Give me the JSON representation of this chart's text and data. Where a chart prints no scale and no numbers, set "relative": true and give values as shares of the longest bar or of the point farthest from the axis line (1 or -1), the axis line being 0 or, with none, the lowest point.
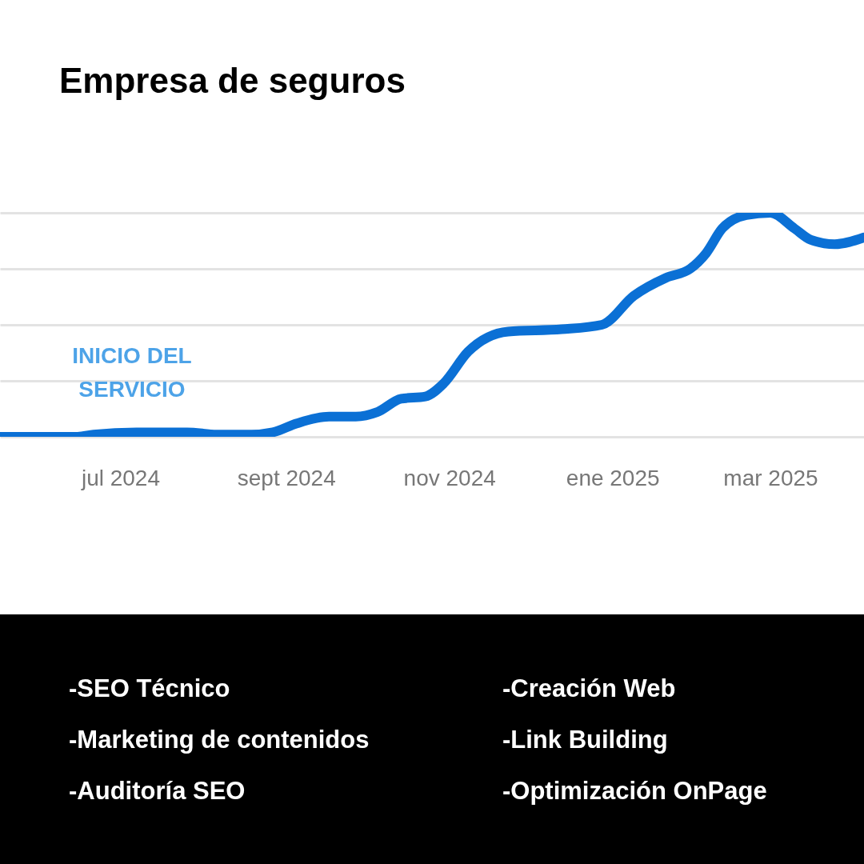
{
  "chart_data": {
    "type": "line",
    "title": "Empresa de seguros",
    "x": [
      "2024-05-17",
      "2024-06-15",
      "2024-06-21",
      "2024-07-07",
      "2024-07-26",
      "2024-08-06",
      "2024-08-19",
      "2024-08-27",
      "2024-09-05",
      "2024-09-17",
      "2024-09-27",
      "2024-10-05",
      "2024-10-14",
      "2024-10-23",
      "2024-10-30",
      "2024-11-08",
      "2024-11-23",
      "2024-12-13",
      "2024-12-28",
      "2025-01-09",
      "2025-01-21",
      "2025-01-30",
      "2025-02-05",
      "2025-02-11",
      "2025-02-20",
      "2025-03-01",
      "2025-03-10",
      "2025-03-16",
      "2025-03-25",
      "2025-04-05"
    ],
    "series": [
      {
        "color": "#0b70d5",
        "values": [
          0.0,
          0.0,
          0.01,
          0.02,
          0.02,
          0.01,
          0.01,
          0.02,
          0.06,
          0.09,
          0.09,
          0.11,
          0.17,
          0.18,
          0.24,
          0.38,
          0.47,
          0.48,
          0.5,
          0.63,
          0.71,
          0.75,
          0.82,
          0.93,
          0.99,
          1.0,
          0.93,
          0.88,
          0.86,
          0.89
        ]
      }
    ],
    "relative": true,
    "xlim": [
      "2024-05-17",
      "2025-04-05"
    ],
    "xticks": [
      {
        "value": "2024-07-01",
        "label": "jul 2024"
      },
      {
        "value": "2024-09-01",
        "label": "sept 2024"
      },
      {
        "value": "2024-11-01",
        "label": "nov 2024"
      },
      {
        "value": "2025-01-01",
        "label": "ene 2025"
      },
      {
        "value": "2025-03-01",
        "label": "mar 2025"
      }
    ],
    "grid": "y",
    "annotations": [
      "INICIO DEL SERVICIO",
      "-SEO Técnico",
      "-Creación Web",
      "-Marketing de contenidos",
      "-Link Building",
      "-Auditoría SEO",
      "-Optimización OnPage"
    ]
  }
}
